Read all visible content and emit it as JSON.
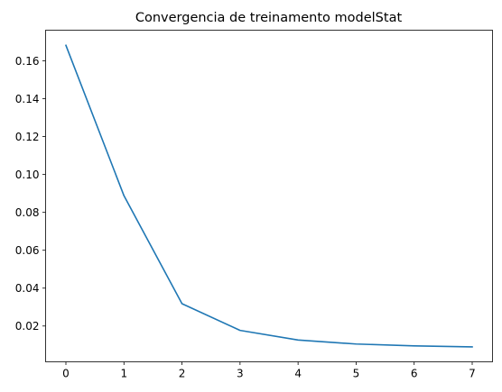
{
  "chart_data": {
    "type": "line",
    "title": "Convergencia de treinamento modelStat",
    "xlabel": "",
    "ylabel": "",
    "x": [
      0,
      1,
      2,
      3,
      4,
      5,
      6,
      7
    ],
    "series": [
      {
        "values": [
          0.1682,
          0.0888,
          0.0318,
          0.0177,
          0.0126,
          0.0105,
          0.0095,
          0.009
        ],
        "color": "#1f77b4"
      }
    ],
    "xlim": [
      -0.35,
      7.35
    ],
    "ylim": [
      0.0011,
      0.1762
    ],
    "xticks": [
      0,
      1,
      2,
      3,
      4,
      5,
      6,
      7
    ],
    "xtick_labels": [
      "0",
      "1",
      "2",
      "3",
      "4",
      "5",
      "6",
      "7"
    ],
    "yticks": [
      0.02,
      0.04,
      0.06,
      0.08,
      0.1,
      0.12,
      0.14,
      0.16
    ],
    "ytick_labels": [
      "0.02",
      "0.04",
      "0.06",
      "0.08",
      "0.10",
      "0.12",
      "0.14",
      "0.16"
    ],
    "grid": false,
    "legend": "none"
  }
}
